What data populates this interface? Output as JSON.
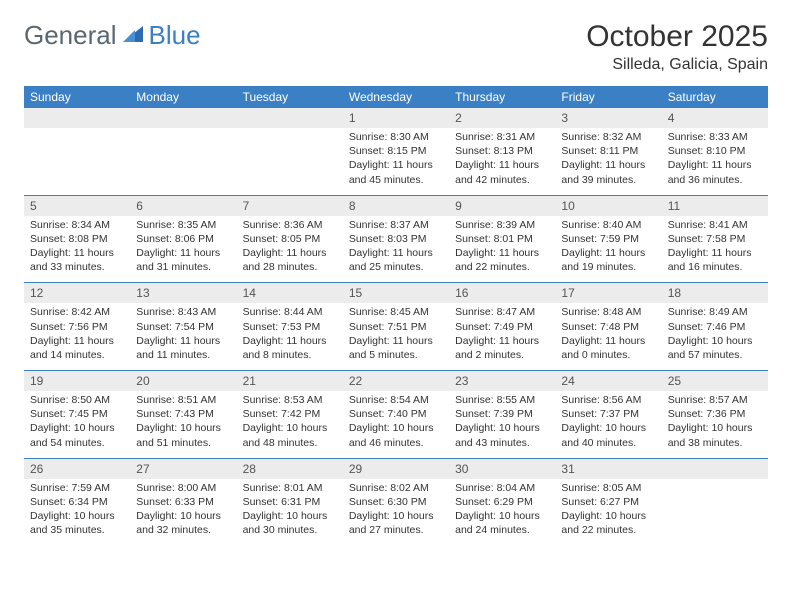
{
  "logo": {
    "text1": "General",
    "text2": "Blue"
  },
  "title": "October 2025",
  "location": "Silleda, Galicia, Spain",
  "colors": {
    "header_bg": "#3b7fc4",
    "header_text": "#ffffff",
    "daynum_bg": "#ececec",
    "text": "#333333",
    "logo_gray": "#5a6770",
    "logo_blue": "#3b7fc4"
  },
  "day_labels": [
    "Sunday",
    "Monday",
    "Tuesday",
    "Wednesday",
    "Thursday",
    "Friday",
    "Saturday"
  ],
  "weeks": [
    [
      null,
      null,
      null,
      {
        "n": "1",
        "sr": "8:30 AM",
        "ss": "8:15 PM",
        "dl": "11 hours and 45 minutes."
      },
      {
        "n": "2",
        "sr": "8:31 AM",
        "ss": "8:13 PM",
        "dl": "11 hours and 42 minutes."
      },
      {
        "n": "3",
        "sr": "8:32 AM",
        "ss": "8:11 PM",
        "dl": "11 hours and 39 minutes."
      },
      {
        "n": "4",
        "sr": "8:33 AM",
        "ss": "8:10 PM",
        "dl": "11 hours and 36 minutes."
      }
    ],
    [
      {
        "n": "5",
        "sr": "8:34 AM",
        "ss": "8:08 PM",
        "dl": "11 hours and 33 minutes."
      },
      {
        "n": "6",
        "sr": "8:35 AM",
        "ss": "8:06 PM",
        "dl": "11 hours and 31 minutes."
      },
      {
        "n": "7",
        "sr": "8:36 AM",
        "ss": "8:05 PM",
        "dl": "11 hours and 28 minutes."
      },
      {
        "n": "8",
        "sr": "8:37 AM",
        "ss": "8:03 PM",
        "dl": "11 hours and 25 minutes."
      },
      {
        "n": "9",
        "sr": "8:39 AM",
        "ss": "8:01 PM",
        "dl": "11 hours and 22 minutes."
      },
      {
        "n": "10",
        "sr": "8:40 AM",
        "ss": "7:59 PM",
        "dl": "11 hours and 19 minutes."
      },
      {
        "n": "11",
        "sr": "8:41 AM",
        "ss": "7:58 PM",
        "dl": "11 hours and 16 minutes."
      }
    ],
    [
      {
        "n": "12",
        "sr": "8:42 AM",
        "ss": "7:56 PM",
        "dl": "11 hours and 14 minutes."
      },
      {
        "n": "13",
        "sr": "8:43 AM",
        "ss": "7:54 PM",
        "dl": "11 hours and 11 minutes."
      },
      {
        "n": "14",
        "sr": "8:44 AM",
        "ss": "7:53 PM",
        "dl": "11 hours and 8 minutes."
      },
      {
        "n": "15",
        "sr": "8:45 AM",
        "ss": "7:51 PM",
        "dl": "11 hours and 5 minutes."
      },
      {
        "n": "16",
        "sr": "8:47 AM",
        "ss": "7:49 PM",
        "dl": "11 hours and 2 minutes."
      },
      {
        "n": "17",
        "sr": "8:48 AM",
        "ss": "7:48 PM",
        "dl": "11 hours and 0 minutes."
      },
      {
        "n": "18",
        "sr": "8:49 AM",
        "ss": "7:46 PM",
        "dl": "10 hours and 57 minutes."
      }
    ],
    [
      {
        "n": "19",
        "sr": "8:50 AM",
        "ss": "7:45 PM",
        "dl": "10 hours and 54 minutes."
      },
      {
        "n": "20",
        "sr": "8:51 AM",
        "ss": "7:43 PM",
        "dl": "10 hours and 51 minutes."
      },
      {
        "n": "21",
        "sr": "8:53 AM",
        "ss": "7:42 PM",
        "dl": "10 hours and 48 minutes."
      },
      {
        "n": "22",
        "sr": "8:54 AM",
        "ss": "7:40 PM",
        "dl": "10 hours and 46 minutes."
      },
      {
        "n": "23",
        "sr": "8:55 AM",
        "ss": "7:39 PM",
        "dl": "10 hours and 43 minutes."
      },
      {
        "n": "24",
        "sr": "8:56 AM",
        "ss": "7:37 PM",
        "dl": "10 hours and 40 minutes."
      },
      {
        "n": "25",
        "sr": "8:57 AM",
        "ss": "7:36 PM",
        "dl": "10 hours and 38 minutes."
      }
    ],
    [
      {
        "n": "26",
        "sr": "7:59 AM",
        "ss": "6:34 PM",
        "dl": "10 hours and 35 minutes."
      },
      {
        "n": "27",
        "sr": "8:00 AM",
        "ss": "6:33 PM",
        "dl": "10 hours and 32 minutes."
      },
      {
        "n": "28",
        "sr": "8:01 AM",
        "ss": "6:31 PM",
        "dl": "10 hours and 30 minutes."
      },
      {
        "n": "29",
        "sr": "8:02 AM",
        "ss": "6:30 PM",
        "dl": "10 hours and 27 minutes."
      },
      {
        "n": "30",
        "sr": "8:04 AM",
        "ss": "6:29 PM",
        "dl": "10 hours and 24 minutes."
      },
      {
        "n": "31",
        "sr": "8:05 AM",
        "ss": "6:27 PM",
        "dl": "10 hours and 22 minutes."
      },
      null
    ]
  ],
  "labels": {
    "sunrise": "Sunrise:",
    "sunset": "Sunset:",
    "daylight": "Daylight:"
  }
}
